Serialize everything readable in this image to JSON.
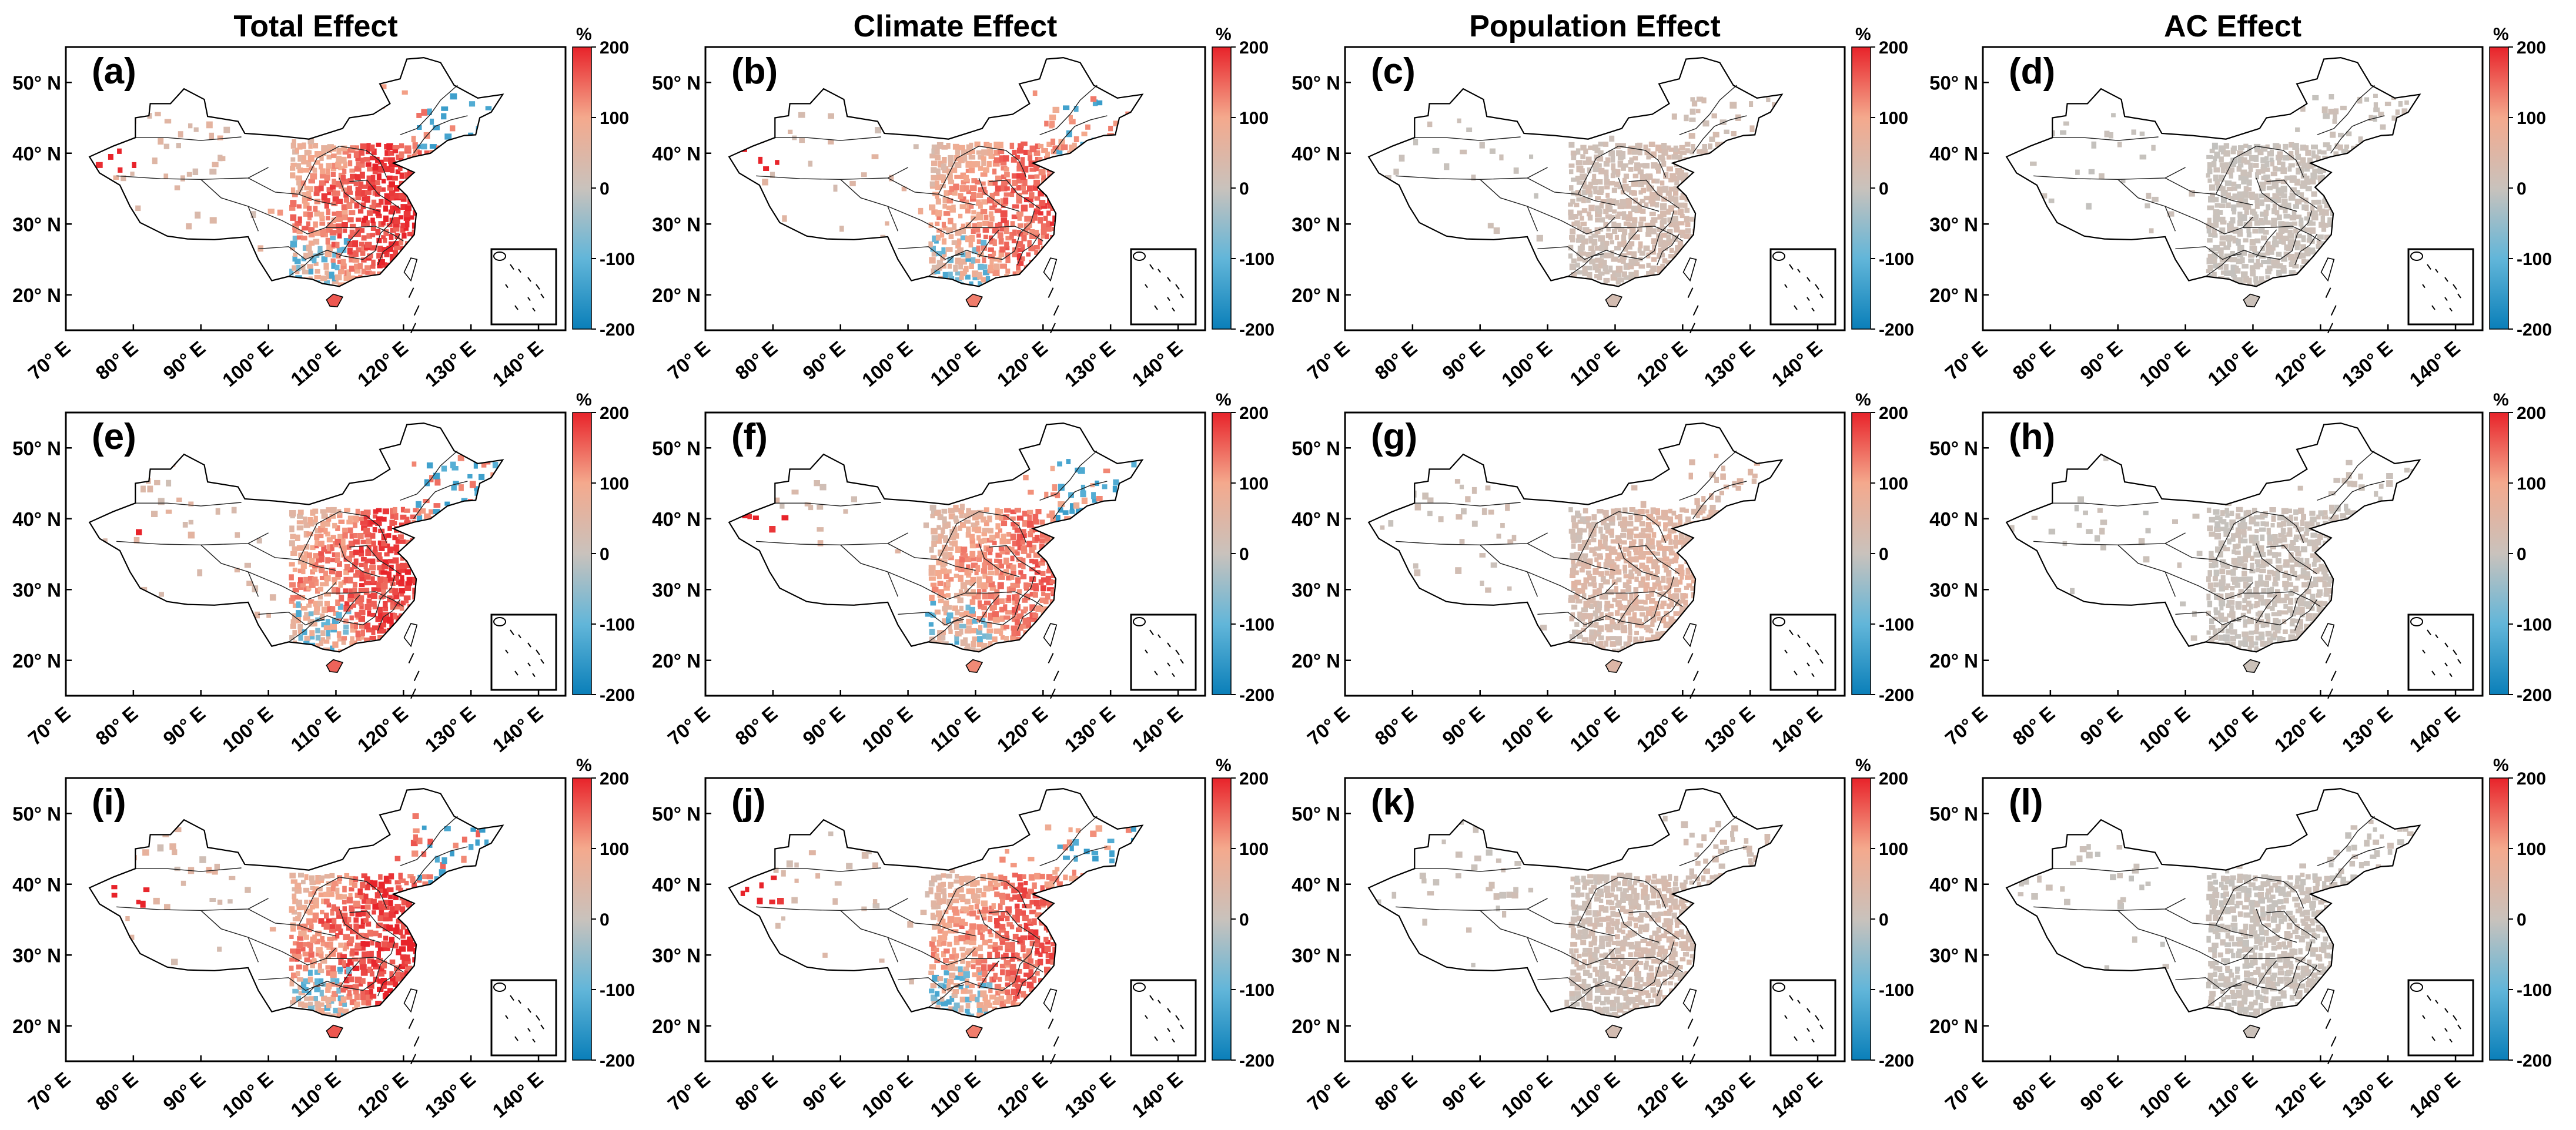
{
  "figure": {
    "column_titles": [
      "Total Effect",
      "Climate Effect",
      "Population Effect",
      "AC Effect"
    ],
    "x_ticks": [
      "70° E",
      "80° E",
      "90° E",
      "100° E",
      "110° E",
      "120° E",
      "130° E",
      "140° E"
    ],
    "y_ticks": [
      "50° N",
      "40° N",
      "30° N",
      "20° N"
    ],
    "colorbar": {
      "unit": "%",
      "ticks": [
        "200",
        "100",
        "0",
        "-100",
        "-200"
      ],
      "colors": {
        "max": "#e8232a",
        "mid_high": "#f4a98d",
        "zero": "#c9c2bc",
        "mid_low": "#62b6d9",
        "min": "#0a7fb9"
      }
    },
    "panels": [
      {
        "label": "(a)",
        "row": 0,
        "col": 0,
        "level": 0.85
      },
      {
        "label": "(b)",
        "row": 0,
        "col": 1,
        "level": 0.7
      },
      {
        "label": "(c)",
        "row": 0,
        "col": 2,
        "level": 0.12
      },
      {
        "label": "(d)",
        "row": 0,
        "col": 3,
        "level": 0.02
      },
      {
        "label": "(e)",
        "row": 1,
        "col": 0,
        "level": 0.8
      },
      {
        "label": "(f)",
        "row": 1,
        "col": 1,
        "level": 0.65
      },
      {
        "label": "(g)",
        "row": 1,
        "col": 2,
        "level": 0.25
      },
      {
        "label": "(h)",
        "row": 1,
        "col": 3,
        "level": 0.03
      },
      {
        "label": "(i)",
        "row": 2,
        "col": 0,
        "level": 0.85
      },
      {
        "label": "(j)",
        "row": 2,
        "col": 1,
        "level": 0.7
      },
      {
        "label": "(k)",
        "row": 2,
        "col": 2,
        "level": 0.12
      },
      {
        "label": "(l)",
        "row": 2,
        "col": 3,
        "level": 0.02
      }
    ]
  }
}
